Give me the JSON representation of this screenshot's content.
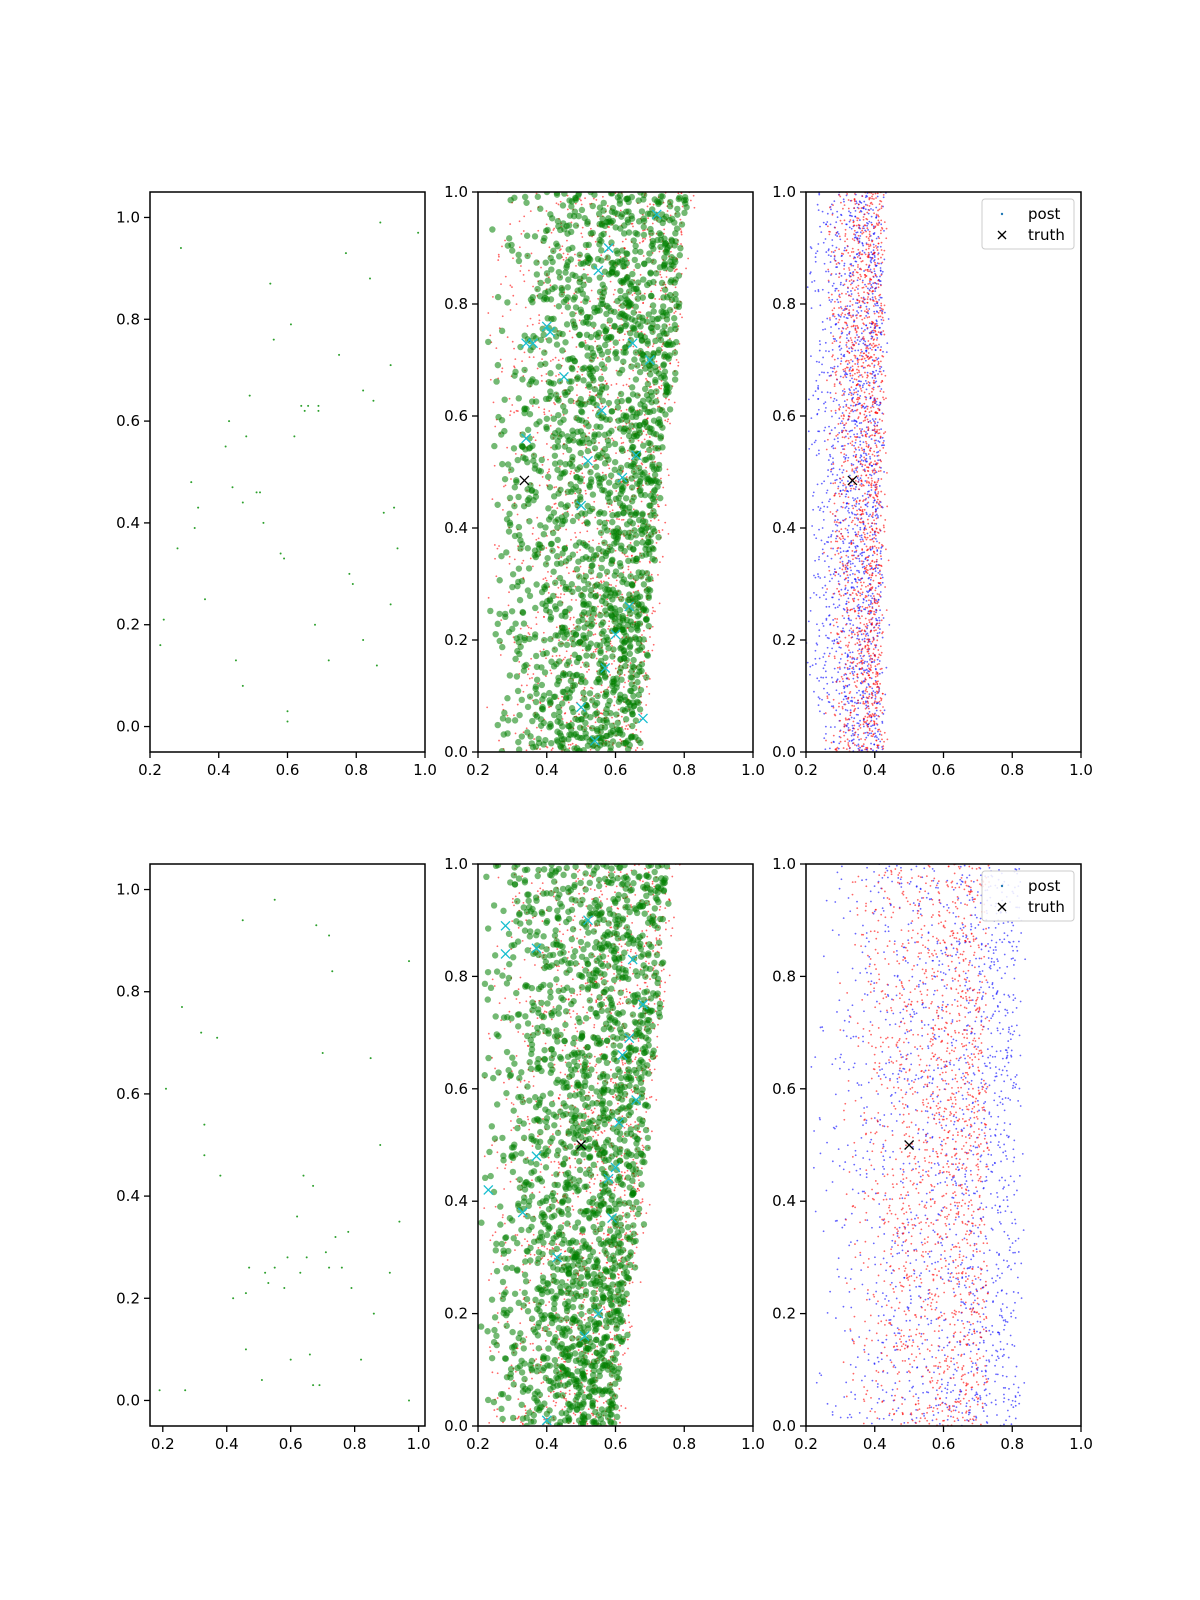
{
  "chart_data": [
    {
      "type": "scatter",
      "panel": "top-left",
      "xlim": [
        0.2,
        1.0
      ],
      "ylim": [
        -0.05,
        1.05
      ],
      "xticks": [
        "0.2",
        "0.4",
        "0.6",
        "0.8",
        "1.0"
      ],
      "yticks": [
        "0.0",
        "0.2",
        "0.4",
        "0.6",
        "0.8",
        "1.0"
      ],
      "grid": false,
      "series": [
        {
          "color": "#2ca02c",
          "marker": "dot",
          "x": [
            0.23,
            0.24,
            0.28,
            0.29,
            0.32,
            0.33,
            0.34,
            0.36,
            0.42,
            0.43,
            0.44,
            0.45,
            0.47,
            0.47,
            0.48,
            0.49,
            0.51,
            0.52,
            0.53,
            0.55,
            0.56,
            0.58,
            0.59,
            0.6,
            0.6,
            0.61,
            0.62,
            0.64,
            0.65,
            0.66,
            0.68,
            0.69,
            0.69,
            0.72,
            0.75,
            0.77,
            0.78,
            0.79,
            0.82,
            0.82,
            0.84,
            0.85,
            0.86,
            0.87,
            0.88,
            0.9,
            0.9,
            0.91,
            0.92,
            0.98
          ],
          "y": [
            0.16,
            0.21,
            0.35,
            0.94,
            0.48,
            0.39,
            0.43,
            0.25,
            0.55,
            0.6,
            0.47,
            0.13,
            0.08,
            0.44,
            0.57,
            0.65,
            0.46,
            0.46,
            0.4,
            0.87,
            0.76,
            0.34,
            0.33,
            0.03,
            0.01,
            0.79,
            0.57,
            0.63,
            0.62,
            0.63,
            0.2,
            0.63,
            0.62,
            0.13,
            0.73,
            0.93,
            0.3,
            0.28,
            0.66,
            0.17,
            0.88,
            0.64,
            0.12,
            0.99,
            0.42,
            0.71,
            0.24,
            0.43,
            0.35,
            0.97
          ]
        }
      ]
    },
    {
      "type": "scatter",
      "panel": "top-middle",
      "xlim": [
        0.2,
        1.0
      ],
      "ylim": [
        0.0,
        1.0
      ],
      "xticks": [
        "0.2",
        "0.4",
        "0.6",
        "0.8",
        "1.0"
      ],
      "yticks": [
        "0.0",
        "0.2",
        "0.4",
        "0.6",
        "0.8",
        "1.0"
      ],
      "grid": false,
      "series": [
        {
          "color": "#ff0000",
          "marker": "small-dot",
          "x_range": [
            0.22,
            0.8
          ],
          "right_edge_bottom": 0.68,
          "right_edge_top": 0.82
        },
        {
          "color": "#008000",
          "marker": "circle",
          "alpha": 0.55,
          "x_range": [
            0.22,
            0.8
          ],
          "right_edge_bottom": 0.66,
          "right_edge_top": 0.81
        },
        {
          "color": "#17becf",
          "marker": "x",
          "x": [
            0.34,
            0.36,
            0.4,
            0.41,
            0.45,
            0.52,
            0.58,
            0.62,
            0.65,
            0.7,
            0.55,
            0.5,
            0.56,
            0.66,
            0.34,
            0.5,
            0.6,
            0.57,
            0.68,
            0.72,
            0.64,
            0.54
          ],
          "y": [
            0.73,
            0.73,
            0.76,
            0.75,
            0.67,
            0.52,
            0.9,
            0.49,
            0.73,
            0.7,
            0.86,
            0.44,
            0.61,
            0.53,
            0.56,
            0.08,
            0.21,
            0.15,
            0.06,
            0.96,
            0.26,
            0.02
          ]
        },
        {
          "color": "#000000",
          "marker": "x",
          "name": "truth",
          "x": [
            0.335
          ],
          "y": [
            0.485
          ]
        }
      ]
    },
    {
      "type": "scatter",
      "panel": "top-right",
      "xlim": [
        0.2,
        1.0
      ],
      "ylim": [
        0.0,
        1.0
      ],
      "xticks": [
        "0.2",
        "0.4",
        "0.6",
        "0.8",
        "1.0"
      ],
      "yticks": [
        "0.0",
        "0.2",
        "0.4",
        "0.6",
        "0.8",
        "1.0"
      ],
      "grid": false,
      "legend": {
        "placement": "top-right",
        "entries": [
          {
            "label": "post",
            "color": "#1f77b4",
            "marker": "dot"
          },
          {
            "label": "truth",
            "color": "#000000",
            "marker": "x"
          }
        ]
      },
      "series": [
        {
          "color": "#0000ff",
          "marker": "small-dot",
          "x_range": [
            0.2,
            0.42
          ]
        },
        {
          "color": "#ff0000",
          "marker": "small-dot",
          "x_range": [
            0.26,
            0.42
          ]
        },
        {
          "color": "#000000",
          "marker": "x",
          "name": "truth",
          "x": [
            0.335
          ],
          "y": [
            0.485
          ]
        }
      ]
    },
    {
      "type": "scatter",
      "panel": "bottom-left",
      "xlim": [
        0.16,
        1.02
      ],
      "ylim": [
        -0.05,
        1.05
      ],
      "xticks": [
        "0.2",
        "0.4",
        "0.6",
        "0.8",
        "1.0"
      ],
      "yticks": [
        "0.0",
        "0.2",
        "0.4",
        "0.6",
        "0.8",
        "1.0"
      ],
      "grid": false,
      "series": [
        {
          "color": "#2ca02c",
          "marker": "dot",
          "x": [
            0.19,
            0.21,
            0.26,
            0.27,
            0.32,
            0.33,
            0.33,
            0.37,
            0.38,
            0.42,
            0.45,
            0.46,
            0.46,
            0.47,
            0.51,
            0.52,
            0.53,
            0.55,
            0.55,
            0.58,
            0.59,
            0.6,
            0.62,
            0.63,
            0.64,
            0.65,
            0.66,
            0.67,
            0.67,
            0.68,
            0.69,
            0.7,
            0.71,
            0.72,
            0.72,
            0.73,
            0.74,
            0.76,
            0.78,
            0.79,
            0.82,
            0.85,
            0.86,
            0.88,
            0.91,
            0.94,
            0.97,
            0.97
          ],
          "y": [
            0.02,
            0.61,
            0.77,
            0.02,
            0.72,
            0.54,
            0.48,
            0.71,
            0.44,
            0.2,
            0.94,
            0.1,
            0.21,
            0.26,
            0.04,
            0.25,
            0.23,
            0.26,
            0.98,
            0.22,
            0.28,
            0.08,
            0.36,
            0.25,
            0.44,
            0.28,
            0.09,
            0.42,
            0.03,
            0.93,
            0.03,
            0.68,
            0.29,
            0.26,
            0.91,
            0.84,
            0.32,
            0.26,
            0.33,
            0.22,
            0.08,
            0.67,
            0.17,
            0.5,
            0.25,
            0.35,
            0.0,
            0.86
          ]
        }
      ]
    },
    {
      "type": "scatter",
      "panel": "bottom-middle",
      "xlim": [
        0.2,
        1.0
      ],
      "ylim": [
        0.0,
        1.0
      ],
      "xticks": [
        "0.2",
        "0.4",
        "0.6",
        "0.8",
        "1.0"
      ],
      "yticks": [
        "0.0",
        "0.2",
        "0.4",
        "0.6",
        "0.8",
        "1.0"
      ],
      "grid": false,
      "series": [
        {
          "color": "#ff0000",
          "marker": "small-dot",
          "x_range": [
            0.2,
            0.78
          ],
          "right_edge_bottom": 0.61,
          "right_edge_top": 0.78
        },
        {
          "color": "#008000",
          "marker": "circle",
          "alpha": 0.55,
          "x_range": [
            0.2,
            0.76
          ],
          "right_edge_bottom": 0.6,
          "right_edge_top": 0.76
        },
        {
          "color": "#17becf",
          "marker": "x",
          "x": [
            0.28,
            0.28,
            0.37,
            0.33,
            0.37,
            0.23,
            0.43,
            0.51,
            0.59,
            0.61,
            0.65,
            0.66,
            0.62,
            0.55,
            0.52,
            0.4,
            0.64,
            0.6,
            0.58,
            0.68
          ],
          "y": [
            0.89,
            0.84,
            0.85,
            0.38,
            0.48,
            0.42,
            0.3,
            0.16,
            0.37,
            0.54,
            0.83,
            0.58,
            0.66,
            0.2,
            0.9,
            0.01,
            0.69,
            0.46,
            0.44,
            0.75
          ]
        },
        {
          "color": "#000000",
          "marker": "x",
          "name": "truth",
          "x": [
            0.5
          ],
          "y": [
            0.5
          ]
        }
      ]
    },
    {
      "type": "scatter",
      "panel": "bottom-right",
      "xlim": [
        0.2,
        1.0
      ],
      "ylim": [
        0.0,
        1.0
      ],
      "xticks": [
        "0.2",
        "0.4",
        "0.6",
        "0.8",
        "1.0"
      ],
      "yticks": [
        "0.0",
        "0.2",
        "0.4",
        "0.6",
        "0.8",
        "1.0"
      ],
      "grid": false,
      "legend": {
        "placement": "top-right",
        "entries": [
          {
            "label": "post",
            "color": "#1f77b4",
            "marker": "dot"
          },
          {
            "label": "truth",
            "color": "#000000",
            "marker": "x"
          }
        ]
      },
      "series": [
        {
          "color": "#0000ff",
          "marker": "small-dot",
          "x_range": [
            0.2,
            0.82
          ]
        },
        {
          "color": "#ff0000",
          "marker": "small-dot",
          "x_range": [
            0.3,
            0.72
          ]
        },
        {
          "color": "#000000",
          "marker": "x",
          "name": "truth",
          "x": [
            0.5
          ],
          "y": [
            0.5
          ]
        }
      ]
    }
  ]
}
